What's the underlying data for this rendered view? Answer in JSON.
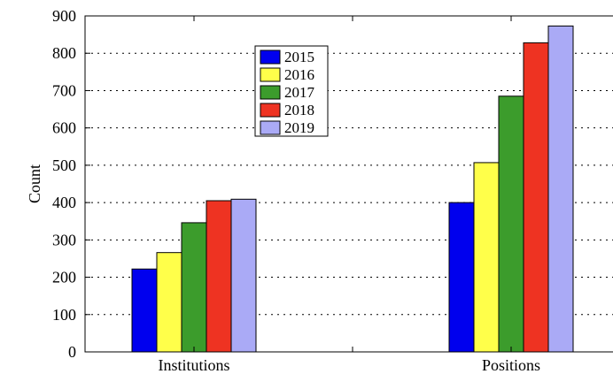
{
  "chart_data": {
    "type": "bar",
    "categories": [
      "Institutions",
      "Positions"
    ],
    "series": [
      {
        "name": "2015",
        "color": "#0000ee",
        "values": [
          222,
          400
        ]
      },
      {
        "name": "2016",
        "color": "#ffff4a",
        "values": [
          266,
          507
        ]
      },
      {
        "name": "2017",
        "color": "#3c9c2c",
        "values": [
          346,
          685
        ]
      },
      {
        "name": "2018",
        "color": "#ee3322",
        "values": [
          405,
          828
        ]
      },
      {
        "name": "2019",
        "color": "#aaaaf6",
        "values": [
          409,
          873
        ]
      }
    ],
    "title": "",
    "xlabel": "",
    "ylabel": "Count",
    "ylim": [
      0,
      900
    ],
    "yticks": [
      0,
      100,
      200,
      300,
      400,
      500,
      600,
      700,
      800,
      900
    ],
    "ytick_labels": [
      "0",
      "100",
      "200",
      "300",
      "400",
      "500",
      "600",
      "700",
      "800",
      "900"
    ],
    "grid": "horizontal dotted",
    "legend_position": "upper-middle"
  }
}
